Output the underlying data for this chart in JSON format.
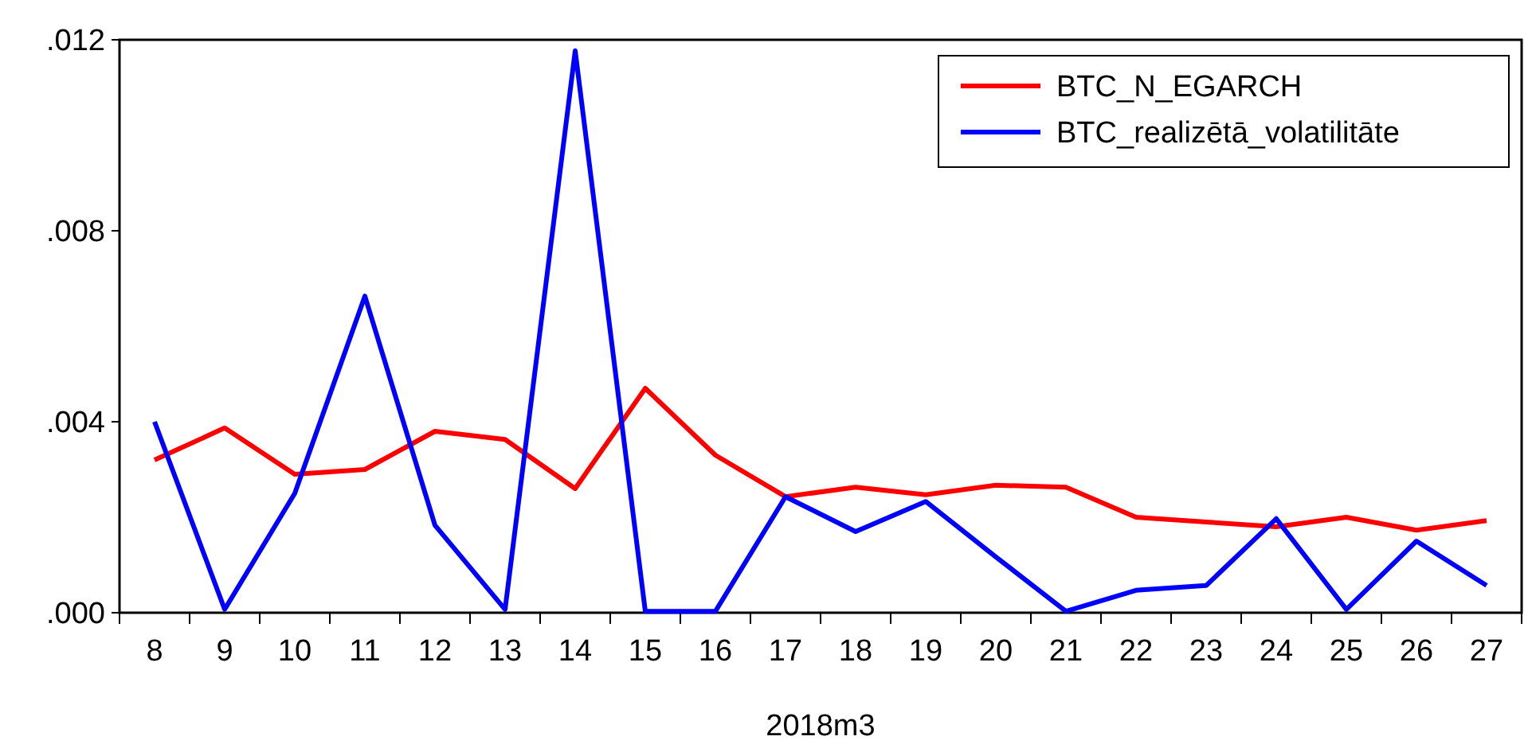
{
  "chart_data": {
    "type": "line",
    "xlabel": "2018m3",
    "categories": [
      "8",
      "9",
      "10",
      "11",
      "12",
      "13",
      "14",
      "15",
      "16",
      "17",
      "18",
      "19",
      "20",
      "21",
      "22",
      "23",
      "24",
      "25",
      "26",
      "27"
    ],
    "series": [
      {
        "name": "BTC_N_EGARCH",
        "color": "#ff0000",
        "values": [
          0.0032,
          0.00387,
          0.0029,
          0.003,
          0.0038,
          0.00363,
          0.0026,
          0.0047,
          0.0033,
          0.00243,
          0.00263,
          0.00247,
          0.00267,
          0.00263,
          0.002,
          0.0019,
          0.0018,
          0.002,
          0.00173,
          0.00193
        ]
      },
      {
        "name": "BTC_realizētā_volatilitāte",
        "color": "#0000ff",
        "values": [
          0.004,
          7e-05,
          0.0025,
          0.00663,
          0.00183,
          7e-05,
          0.01177,
          3e-05,
          3e-05,
          0.00243,
          0.0017,
          0.00233,
          0.00117,
          3e-05,
          0.00047,
          0.00057,
          0.00197,
          7e-05,
          0.0015,
          0.00057
        ]
      }
    ],
    "ylim": [
      0,
      0.012
    ],
    "yticks": [
      {
        "value": 0,
        "label": ".000"
      },
      {
        "value": 0.004,
        "label": ".004"
      },
      {
        "value": 0.008,
        "label": ".008"
      },
      {
        "value": 0.012,
        "label": ".012"
      }
    ],
    "grid": false,
    "legend": "top right",
    "line_style": "solid"
  }
}
